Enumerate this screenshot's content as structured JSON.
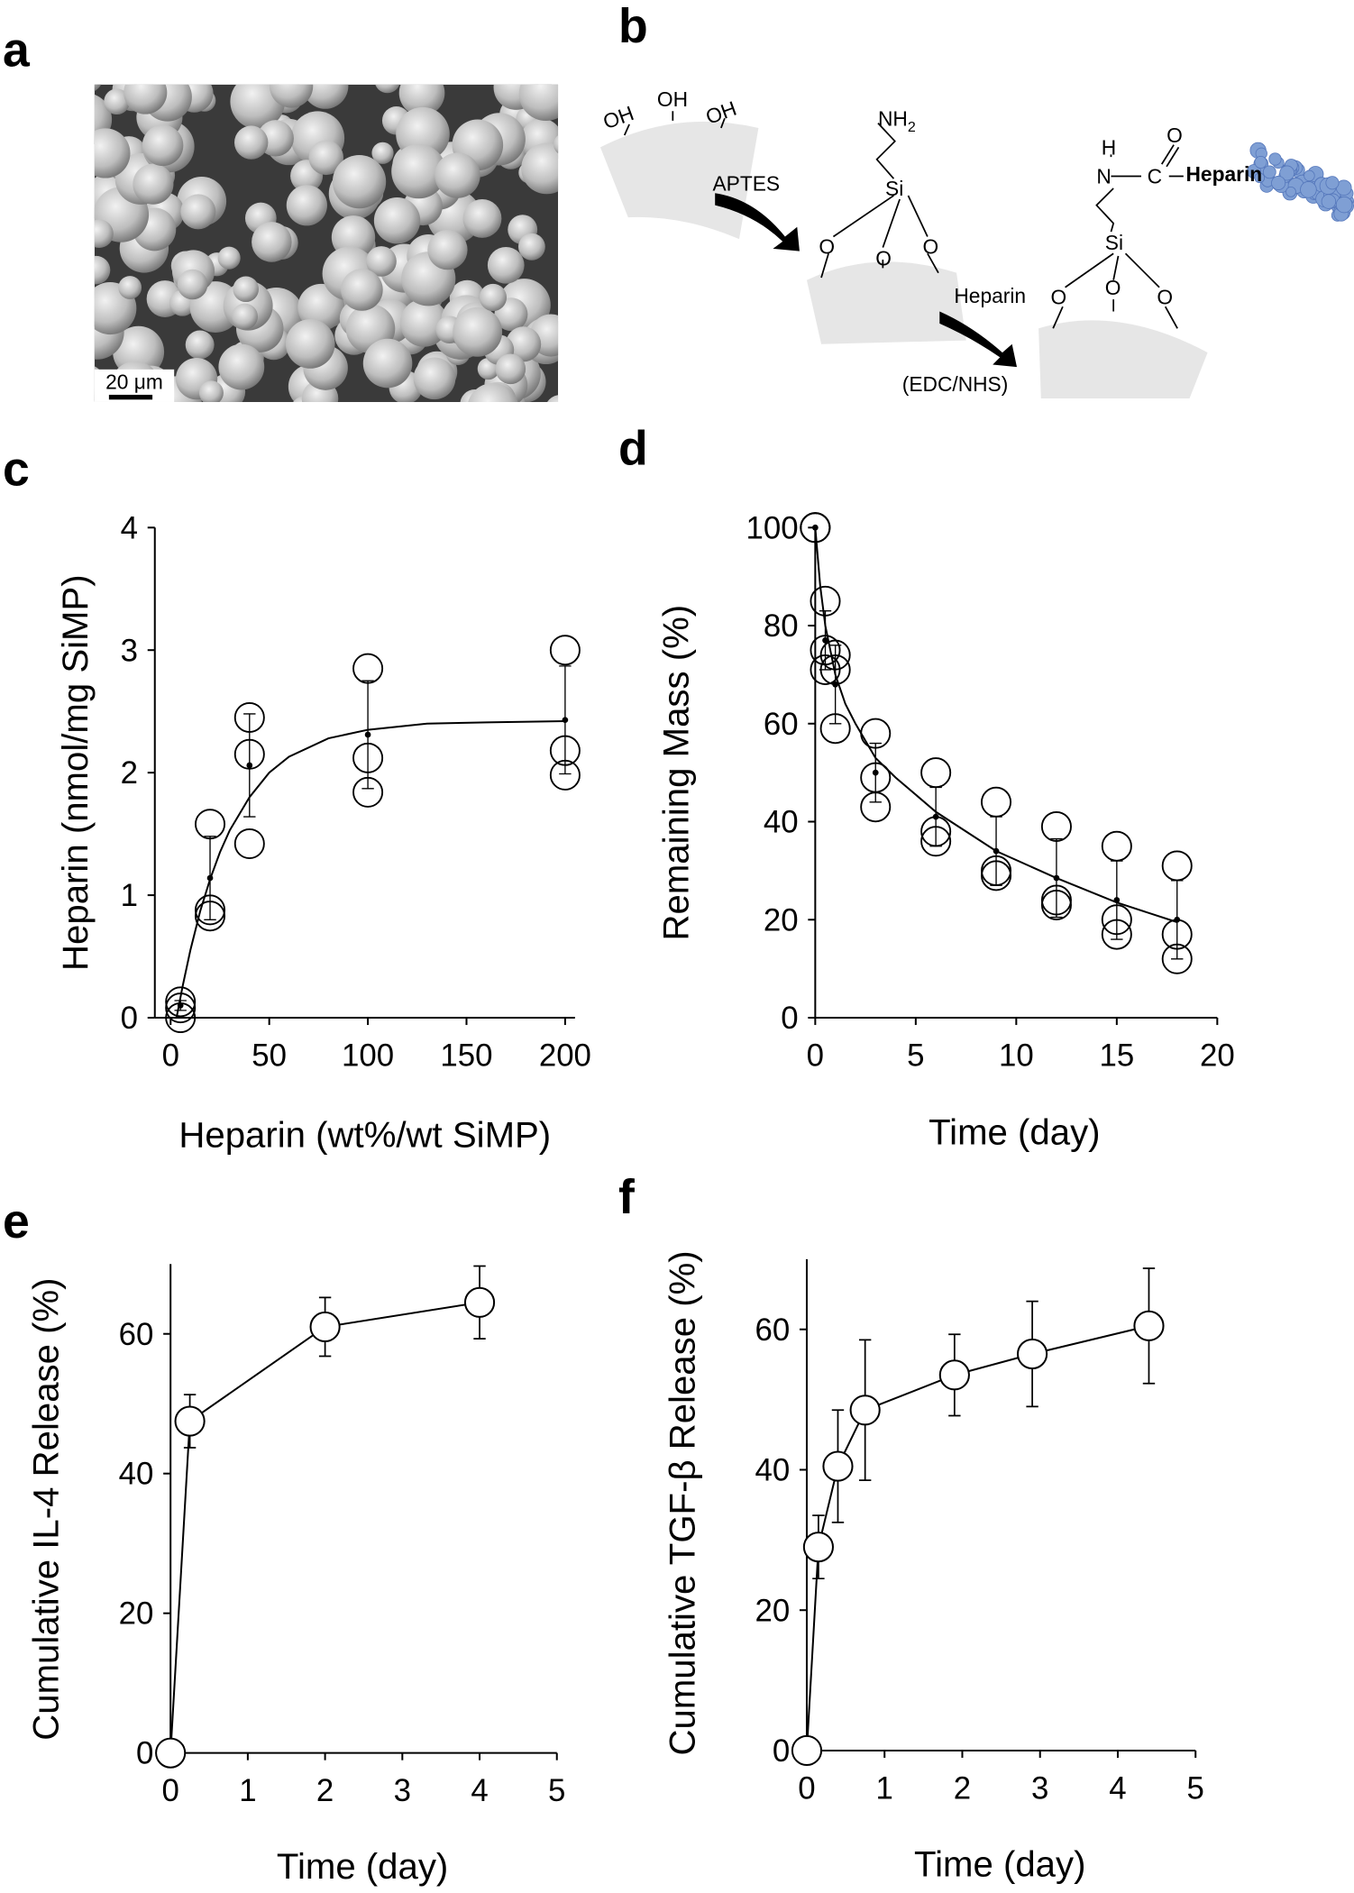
{
  "panel_labels": [
    "a",
    "b",
    "c",
    "d",
    "e",
    "f"
  ],
  "panel_a": {
    "scale_bar": "20 μm"
  },
  "panel_b": {
    "hydroxyl": "OH",
    "amine": "NH",
    "amine_subscript": "2",
    "silicon": "Si",
    "oxygen": "O",
    "reagent_1": "APTES",
    "reagent_2": "Heparin",
    "conditions": "(EDC/NHS)",
    "hydrogen": "H",
    "nitrogen": "N",
    "carbon": "C",
    "conjugate": "Heparin"
  },
  "chart_data": [
    {
      "type": "scatter",
      "x_label": "Heparin (wt%/wt SiMP)",
      "y_label": "Heparin (nmol/mg SiMP)",
      "xlim": [
        -8,
        205
      ],
      "ylim": [
        0,
        4
      ],
      "xticks": [
        0,
        50,
        100,
        150,
        200
      ],
      "yticks": [
        0,
        1,
        2,
        3,
        4
      ],
      "replicates": {
        "x": [
          5,
          5,
          5,
          20,
          20,
          20,
          40,
          40,
          40,
          100,
          100,
          100,
          200,
          200,
          200
        ],
        "y": [
          0.13,
          0.08,
          0.0,
          1.58,
          0.88,
          0.83,
          2.45,
          2.15,
          1.42,
          2.85,
          2.12,
          1.84,
          3.0,
          2.18,
          1.98
        ]
      },
      "means": {
        "x": [
          5,
          20,
          40,
          100,
          200
        ],
        "values": [
          0.1,
          1.14,
          2.06,
          2.31,
          2.43
        ],
        "errors": [
          0.04,
          0.34,
          0.42,
          0.44,
          0.44
        ]
      },
      "fit": {
        "x": [
          3,
          6,
          10,
          15,
          20,
          25,
          30,
          40,
          50,
          60,
          80,
          100,
          130,
          160,
          200
        ],
        "values": [
          0,
          0.25,
          0.55,
          0.87,
          1.13,
          1.35,
          1.53,
          1.8,
          2.0,
          2.13,
          2.28,
          2.35,
          2.4,
          2.41,
          2.42
        ]
      }
    },
    {
      "type": "scatter",
      "x_label": "Time (day)",
      "y_label": "Remaining Mass (%)",
      "xlim": [
        0,
        20
      ],
      "ylim": [
        0,
        100
      ],
      "xticks": [
        0,
        5,
        10,
        15,
        20
      ],
      "yticks": [
        0,
        20,
        40,
        60,
        80,
        100
      ],
      "replicates": {
        "x": [
          0,
          0,
          0,
          0.5,
          0.5,
          0.5,
          1,
          1,
          1,
          3,
          3,
          3,
          6,
          6,
          6,
          9,
          9,
          9,
          12,
          12,
          12,
          15,
          15,
          15,
          18,
          18,
          18
        ],
        "y": [
          100,
          100,
          100,
          85,
          75,
          71,
          74,
          71,
          59,
          58,
          49,
          43,
          50,
          38,
          36,
          44,
          30,
          29,
          39,
          24,
          23,
          35,
          20,
          17,
          31,
          17,
          12
        ]
      },
      "means": {
        "x": [
          0,
          0.5,
          1,
          3,
          6,
          9,
          12,
          15,
          18
        ],
        "values": [
          100,
          77,
          68,
          50,
          41,
          34,
          28.5,
          24,
          20
        ],
        "errors": [
          null,
          6,
          8,
          6,
          6,
          7,
          8,
          8,
          8
        ]
      },
      "fit": {
        "x": [
          0,
          0.25,
          0.5,
          1,
          1.5,
          2,
          3,
          4,
          6,
          9,
          12,
          15,
          18
        ],
        "values": [
          100,
          88,
          80,
          70,
          64,
          60,
          53,
          49,
          42,
          34,
          28.5,
          23.5,
          19.5
        ]
      }
    },
    {
      "type": "line",
      "x_label": "Time (day)",
      "y_label": "Cumulative IL-4 Release (%)",
      "xlim": [
        0,
        5
      ],
      "ylim": [
        0,
        70
      ],
      "xticks": [
        0,
        1,
        2,
        3,
        4,
        5
      ],
      "yticks": [
        0,
        20,
        40,
        60
      ],
      "x": [
        0,
        0.25,
        2,
        4
      ],
      "values": [
        0,
        47.5,
        61,
        64.5
      ],
      "errors": [
        null,
        3.8,
        4.2,
        5.2
      ]
    },
    {
      "type": "line",
      "x_label": "Time (day)",
      "y_label": "Cumulative TGF-β Release (%)",
      "xlim": [
        0,
        5
      ],
      "ylim": [
        0,
        70
      ],
      "xticks": [
        0,
        1,
        2,
        3,
        4,
        5
      ],
      "yticks": [
        0,
        20,
        40,
        60
      ],
      "x": [
        0,
        0.15,
        0.4,
        0.75,
        1.9,
        2.9,
        4.4
      ],
      "values": [
        0,
        29,
        40.5,
        48.5,
        53.5,
        56.5,
        60.5
      ],
      "errors": [
        null,
        4.5,
        8,
        10,
        5.8,
        7.5,
        8.2
      ]
    }
  ]
}
